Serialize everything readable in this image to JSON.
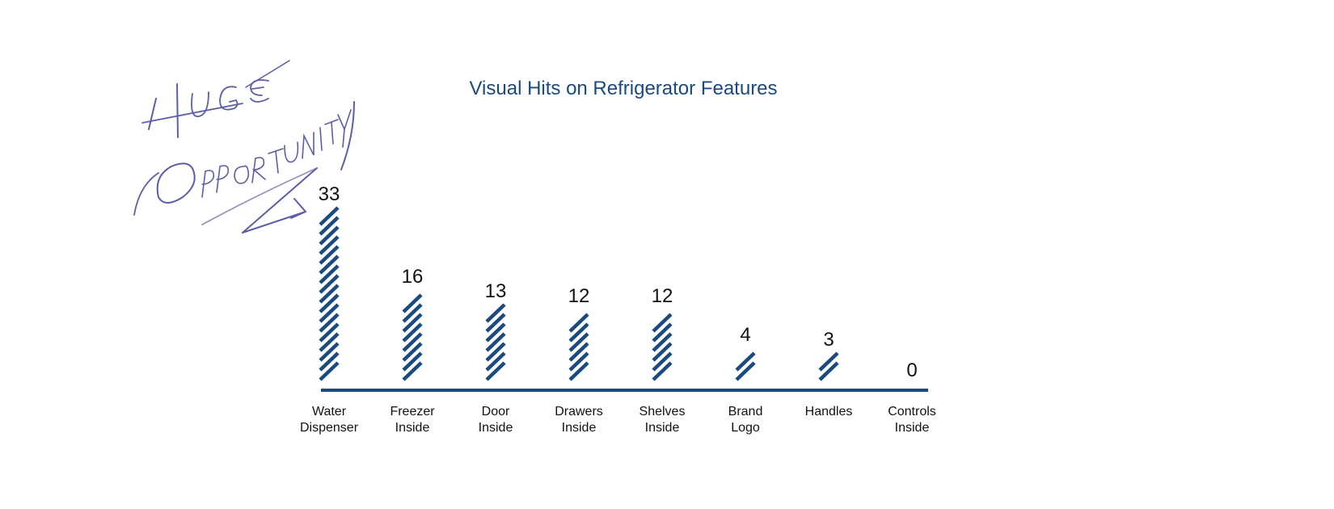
{
  "chart_data": {
    "type": "bar",
    "title": "Visual Hits on Refrigerator Features",
    "categories": [
      [
        "Water",
        "Dispenser"
      ],
      [
        "Freezer",
        "Inside"
      ],
      [
        "Door",
        "Inside"
      ],
      [
        "Drawers",
        "Inside"
      ],
      [
        "Shelves",
        "Inside"
      ],
      [
        "Brand",
        "Logo"
      ],
      [
        "Handles"
      ],
      [
        "Controls",
        "Inside"
      ]
    ],
    "values": [
      33,
      16,
      13,
      12,
      12,
      4,
      3,
      0
    ],
    "xlabel": "",
    "ylabel": "",
    "grid": false,
    "legend": "none",
    "bar_style": "diagonal-hatch",
    "colors": {
      "bar": "#1a4a80",
      "axis": "#1a4a80",
      "title": "#1a4a80",
      "annotation": "#5c5ea8"
    }
  },
  "annotation": {
    "text": [
      "HUGE",
      "OPPORTUNITY"
    ],
    "style": "handwritten"
  }
}
